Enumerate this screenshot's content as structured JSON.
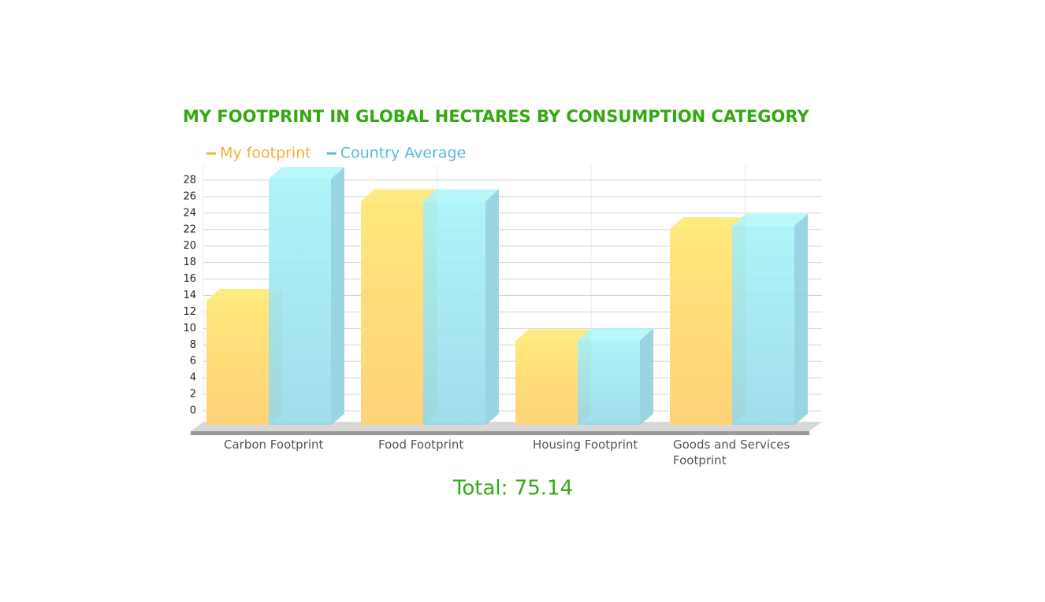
{
  "chart_data": {
    "type": "bar3d",
    "title": "MY FOOTPRINT IN GLOBAL HECTARES BY CONSUMPTION CATEGORY",
    "categories": [
      "Carbon Footprint",
      "Food Footprint",
      "Housing Footprint",
      "Goods and Services Footprint"
    ],
    "series": [
      {
        "name": "My footprint",
        "color": "#ffd86a",
        "values": [
          14.8,
          26.9,
          9.9,
          23.5
        ]
      },
      {
        "name": "Country Average",
        "color": "#9fe4f2",
        "values": [
          29.6,
          26.9,
          10.0,
          23.9
        ]
      }
    ],
    "ylim": [
      0,
      28
    ],
    "yticks": [
      0,
      2,
      4,
      6,
      8,
      10,
      12,
      14,
      16,
      18,
      20,
      22,
      24,
      26,
      28
    ],
    "grid": true,
    "total": "Total: 75.14"
  }
}
